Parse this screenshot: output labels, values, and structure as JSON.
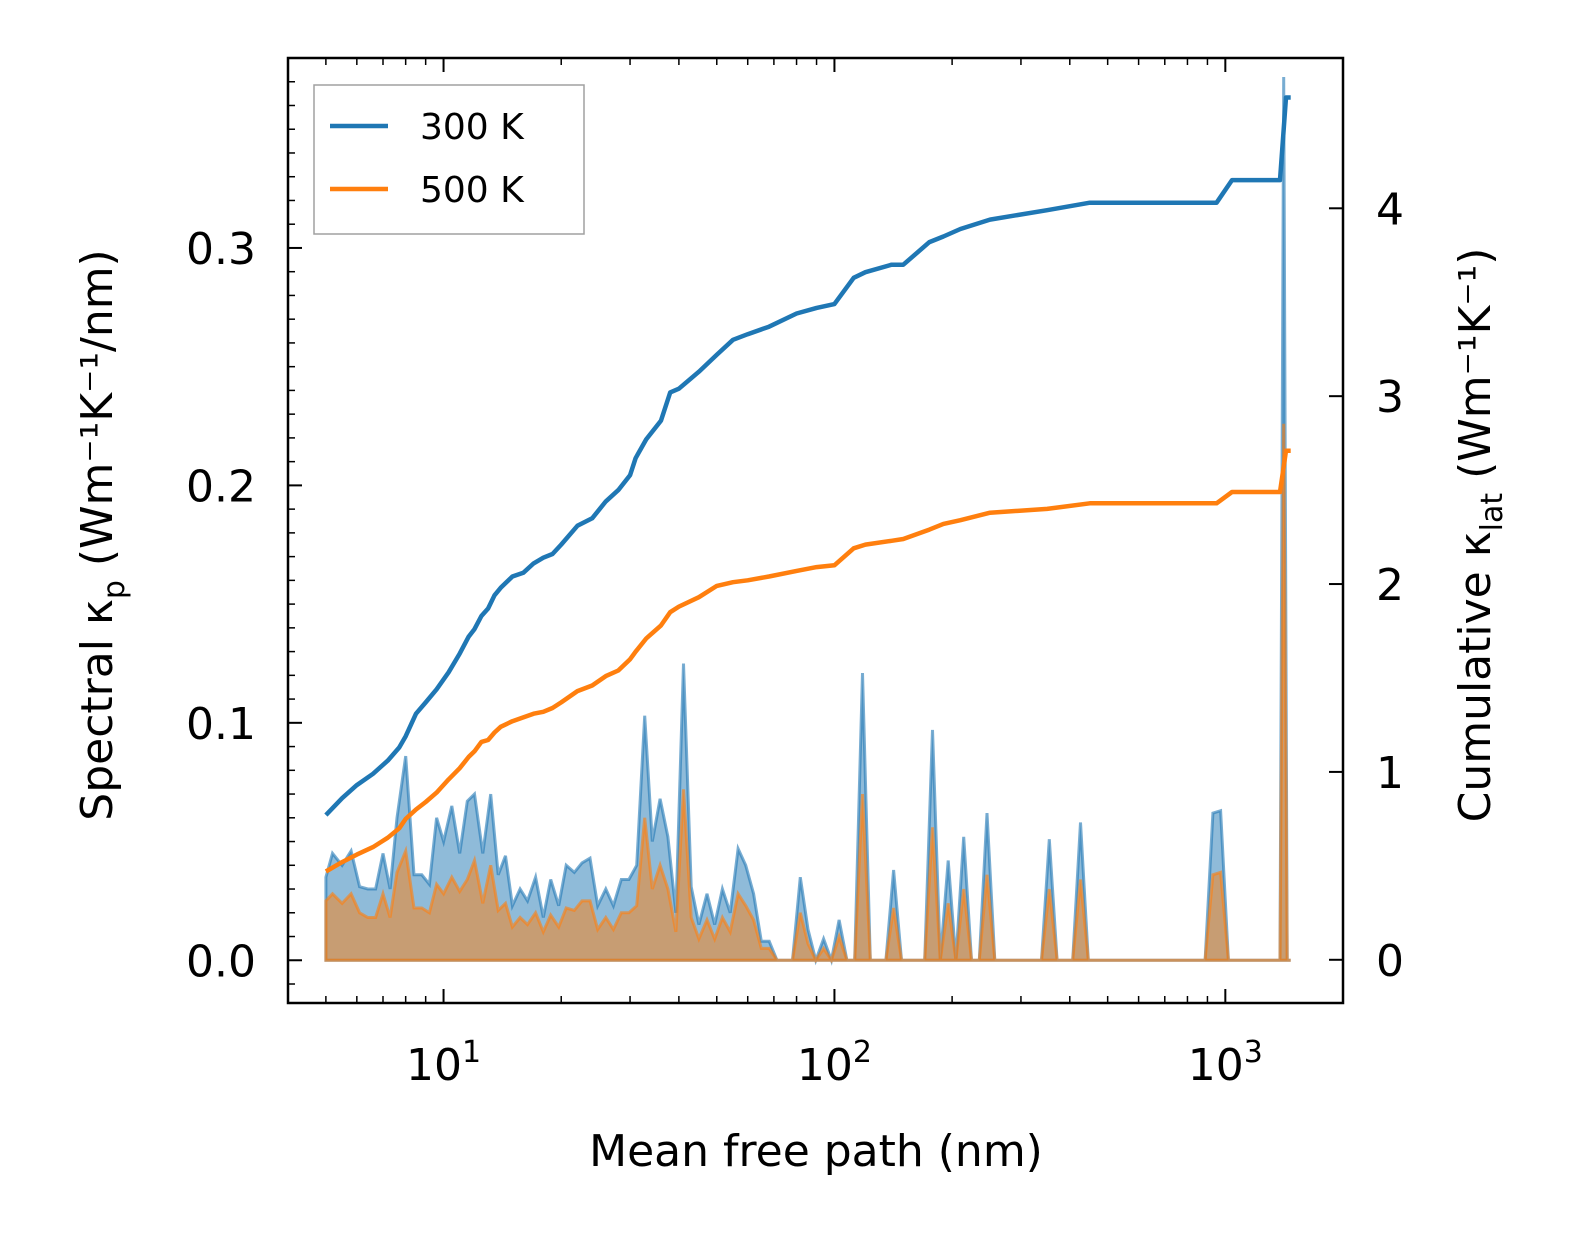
{
  "chart_data": {
    "type": "line",
    "title": "",
    "xlabel": "Mean free path (nm)",
    "ylabel": "Spectral κ",
    "ylabel_sub": "p",
    "ylabel_units": " (Wm⁻¹K⁻¹/nm)",
    "y2label": "Cumulative κ",
    "y2label_sub": "lat",
    "y2label_units": " (Wm⁻¹K⁻¹)",
    "xscale": "log",
    "xlim": [
      4.0,
      2000
    ],
    "ylim": [
      -0.018,
      0.38
    ],
    "y2lim": [
      -0.23,
      4.8
    ],
    "x_ticks": [
      10,
      100,
      1000
    ],
    "x_tick_labels": [
      {
        "base": "10",
        "exp": "1"
      },
      {
        "base": "10",
        "exp": "2"
      },
      {
        "base": "10",
        "exp": "3"
      }
    ],
    "y_ticks": [
      0.0,
      0.1,
      0.2,
      0.3
    ],
    "y_tick_labels": [
      "0.0",
      "0.1",
      "0.2",
      "0.3"
    ],
    "y2_ticks": [
      0,
      1,
      2,
      3,
      4
    ],
    "y2_tick_labels": [
      "0",
      "1",
      "2",
      "3",
      "4"
    ],
    "grid": false,
    "legend_position": "top-left",
    "series": [
      {
        "name": "300 K",
        "color": "#1f77b4",
        "axis": "right",
        "kind": "cumulative",
        "x": [
          5.0,
          5.5,
          6.0,
          6.6,
          7.2,
          7.7,
          8.0,
          8.5,
          9.0,
          9.6,
          10.3,
          11.0,
          11.6,
          12.0,
          12.5,
          13.0,
          13.5,
          14.0,
          15.0,
          16.0,
          17.0,
          18.0,
          19.0,
          20.0,
          22.0,
          24.0,
          26.0,
          28.0,
          30.0,
          31.0,
          33.0,
          36.0,
          38.0,
          40.0,
          45.0,
          50.0,
          55.0,
          60.0,
          68.0,
          80.0,
          90.0,
          100.0,
          112.0,
          120.0,
          140.0,
          150.0,
          175.0,
          190.0,
          210.0,
          250.0,
          350.0,
          450.0,
          950.0,
          1040.0,
          1380.0,
          1430.0,
          1470.0
        ],
        "values": [
          0.77,
          0.86,
          0.93,
          0.99,
          1.06,
          1.13,
          1.19,
          1.31,
          1.37,
          1.44,
          1.53,
          1.63,
          1.72,
          1.76,
          1.83,
          1.87,
          1.94,
          1.98,
          2.04,
          2.06,
          2.11,
          2.14,
          2.16,
          2.21,
          2.31,
          2.35,
          2.44,
          2.5,
          2.58,
          2.67,
          2.77,
          2.87,
          3.02,
          3.04,
          3.13,
          3.22,
          3.3,
          3.33,
          3.37,
          3.44,
          3.47,
          3.49,
          3.63,
          3.66,
          3.7,
          3.7,
          3.82,
          3.85,
          3.89,
          3.94,
          3.99,
          4.03,
          4.03,
          4.15,
          4.15,
          4.59,
          4.59
        ]
      },
      {
        "name": "500 K",
        "color": "#ff7f0e",
        "axis": "right",
        "kind": "cumulative",
        "x": [
          5.0,
          5.5,
          6.0,
          6.6,
          7.2,
          7.7,
          8.0,
          8.5,
          9.0,
          9.6,
          10.3,
          11.0,
          11.6,
          12.0,
          12.5,
          13.0,
          13.5,
          14.0,
          15.0,
          16.0,
          17.0,
          18.0,
          19.0,
          20.0,
          22.0,
          24.0,
          26.0,
          28.0,
          30.0,
          31.0,
          33.0,
          36.0,
          38.0,
          40.0,
          45.0,
          50.0,
          55.0,
          60.0,
          68.0,
          80.0,
          90.0,
          100.0,
          112.0,
          120.0,
          140.0,
          150.0,
          175.0,
          190.0,
          210.0,
          250.0,
          350.0,
          450.0,
          950.0,
          1040.0,
          1380.0,
          1430.0,
          1470.0
        ],
        "values": [
          0.47,
          0.52,
          0.56,
          0.6,
          0.65,
          0.7,
          0.75,
          0.8,
          0.84,
          0.89,
          0.96,
          1.02,
          1.08,
          1.11,
          1.16,
          1.17,
          1.21,
          1.24,
          1.27,
          1.29,
          1.31,
          1.32,
          1.34,
          1.37,
          1.43,
          1.46,
          1.51,
          1.54,
          1.6,
          1.64,
          1.71,
          1.78,
          1.85,
          1.88,
          1.93,
          1.99,
          2.01,
          2.02,
          2.04,
          2.07,
          2.09,
          2.1,
          2.19,
          2.21,
          2.23,
          2.24,
          2.29,
          2.32,
          2.34,
          2.38,
          2.4,
          2.43,
          2.43,
          2.49,
          2.49,
          2.71,
          2.71
        ]
      },
      {
        "name": "300 K spectral",
        "color": "#1f77b4",
        "axis": "left",
        "kind": "spectral",
        "x": [
          5.0,
          5.2,
          5.5,
          5.8,
          6.1,
          6.4,
          6.7,
          7.0,
          7.3,
          7.6,
          8.0,
          8.4,
          8.8,
          9.2,
          9.6,
          10.0,
          10.5,
          11.0,
          11.5,
          12.0,
          12.6,
          13.2,
          13.8,
          14.4,
          15.0,
          15.7,
          16.4,
          17.2,
          18.0,
          18.8,
          19.7,
          20.6,
          21.6,
          22.6,
          23.7,
          24.8,
          26.0,
          27.2,
          28.5,
          29.8,
          31.2,
          32.7,
          34.2,
          35.8,
          37.5,
          39.3,
          41.1,
          43.0,
          45.0,
          47.2,
          49.4,
          51.7,
          54.1,
          56.7,
          59.3,
          62.1,
          65.0,
          68.1,
          71.3,
          74.6,
          78.1,
          81.8,
          85.6,
          89.6,
          93.8,
          98.2,
          102.8,
          107.6,
          112.7,
          118.0,
          123.5,
          129.3,
          135.4,
          141.7,
          148.4,
          155.3,
          162.6,
          170.2,
          178.2,
          186.6,
          195.4,
          204.5,
          214.1,
          224.2,
          234.7,
          245.7,
          257.2,
          269.3,
          281.9,
          295.2,
          309.0,
          323.5,
          338.7,
          354.6,
          371.2,
          388.7,
          406.9,
          426.0,
          446.0,
          466.9,
          488.8,
          511.8,
          535.8,
          561.0,
          587.3,
          614.9,
          643.7,
          673.9,
          705.6,
          738.7,
          773.4,
          809.7,
          847.7,
          887.5,
          929.2,
          972.8,
          1018.5,
          1066.3,
          1116.4,
          1168.8,
          1223.7,
          1281.1,
          1341.3,
          1380.0,
          1410.0,
          1440.0,
          1470.0
        ],
        "values": [
          0.035,
          0.045,
          0.04,
          0.046,
          0.031,
          0.03,
          0.03,
          0.045,
          0.03,
          0.06,
          0.086,
          0.036,
          0.036,
          0.032,
          0.06,
          0.05,
          0.065,
          0.045,
          0.067,
          0.07,
          0.045,
          0.07,
          0.036,
          0.044,
          0.023,
          0.03,
          0.025,
          0.035,
          0.018,
          0.034,
          0.023,
          0.04,
          0.037,
          0.041,
          0.043,
          0.023,
          0.03,
          0.023,
          0.034,
          0.034,
          0.04,
          0.103,
          0.05,
          0.068,
          0.052,
          0.02,
          0.125,
          0.031,
          0.015,
          0.028,
          0.015,
          0.03,
          0.02,
          0.047,
          0.04,
          0.028,
          0.008,
          0.008,
          0.0,
          0.0,
          0.0,
          0.035,
          0.013,
          0.0,
          0.009,
          0.0,
          0.017,
          0.0,
          0.0,
          0.121,
          0.0,
          0.0,
          0.0,
          0.038,
          0.0,
          0.0,
          0.0,
          0.0,
          0.097,
          0.0,
          0.042,
          0.0,
          0.052,
          0.0,
          0.0,
          0.062,
          0.0,
          0.0,
          0.0,
          0.0,
          0.0,
          0.0,
          0.0,
          0.051,
          0.0,
          0.0,
          0.0,
          0.058,
          0.0,
          0.0,
          0.0,
          0.0,
          0.0,
          0.0,
          0.0,
          0.0,
          0.0,
          0.0,
          0.0,
          0.0,
          0.0,
          0.0,
          0.0,
          0.0,
          0.062,
          0.063,
          0.0,
          0.0,
          0.0,
          0.0,
          0.0,
          0.0,
          0.0,
          0.0,
          0.372,
          0.0,
          0.0
        ]
      },
      {
        "name": "500 K spectral",
        "color": "#ff7f0e",
        "axis": "left",
        "kind": "spectral",
        "x": [
          5.0,
          5.2,
          5.5,
          5.8,
          6.1,
          6.4,
          6.7,
          7.0,
          7.3,
          7.6,
          8.0,
          8.4,
          8.8,
          9.2,
          9.6,
          10.0,
          10.5,
          11.0,
          11.5,
          12.0,
          12.6,
          13.2,
          13.8,
          14.4,
          15.0,
          15.7,
          16.4,
          17.2,
          18.0,
          18.8,
          19.7,
          20.6,
          21.6,
          22.6,
          23.7,
          24.8,
          26.0,
          27.2,
          28.5,
          29.8,
          31.2,
          32.7,
          34.2,
          35.8,
          37.5,
          39.3,
          41.1,
          43.0,
          45.0,
          47.2,
          49.4,
          51.7,
          54.1,
          56.7,
          59.3,
          62.1,
          65.0,
          68.1,
          71.3,
          74.6,
          78.1,
          81.8,
          85.6,
          89.6,
          93.8,
          98.2,
          102.8,
          107.6,
          112.7,
          118.0,
          123.5,
          129.3,
          135.4,
          141.7,
          148.4,
          155.3,
          162.6,
          170.2,
          178.2,
          186.6,
          195.4,
          204.5,
          214.1,
          224.2,
          234.7,
          245.7,
          257.2,
          269.3,
          281.9,
          295.2,
          309.0,
          323.5,
          338.7,
          354.6,
          371.2,
          388.7,
          406.9,
          426.0,
          446.0,
          466.9,
          488.8,
          511.8,
          535.8,
          561.0,
          587.3,
          614.9,
          643.7,
          673.9,
          705.6,
          738.7,
          773.4,
          809.7,
          847.7,
          887.5,
          929.2,
          972.8,
          1018.5,
          1066.3,
          1116.4,
          1168.8,
          1223.7,
          1281.1,
          1341.3,
          1380.0,
          1410.0,
          1440.0,
          1470.0
        ],
        "values": [
          0.025,
          0.028,
          0.024,
          0.028,
          0.02,
          0.018,
          0.018,
          0.028,
          0.018,
          0.037,
          0.046,
          0.022,
          0.022,
          0.02,
          0.032,
          0.028,
          0.035,
          0.029,
          0.034,
          0.042,
          0.024,
          0.04,
          0.021,
          0.024,
          0.014,
          0.018,
          0.015,
          0.02,
          0.012,
          0.019,
          0.014,
          0.022,
          0.021,
          0.025,
          0.025,
          0.013,
          0.018,
          0.013,
          0.02,
          0.02,
          0.023,
          0.06,
          0.03,
          0.04,
          0.03,
          0.012,
          0.072,
          0.018,
          0.009,
          0.017,
          0.009,
          0.018,
          0.012,
          0.028,
          0.023,
          0.017,
          0.005,
          0.005,
          0.0,
          0.0,
          0.0,
          0.02,
          0.007,
          0.0,
          0.005,
          0.0,
          0.01,
          0.0,
          0.0,
          0.07,
          0.0,
          0.0,
          0.0,
          0.022,
          0.0,
          0.0,
          0.0,
          0.0,
          0.056,
          0.0,
          0.024,
          0.0,
          0.03,
          0.0,
          0.0,
          0.036,
          0.0,
          0.0,
          0.0,
          0.0,
          0.0,
          0.0,
          0.0,
          0.03,
          0.0,
          0.0,
          0.0,
          0.034,
          0.0,
          0.0,
          0.0,
          0.0,
          0.0,
          0.0,
          0.0,
          0.0,
          0.0,
          0.0,
          0.0,
          0.0,
          0.0,
          0.0,
          0.0,
          0.0,
          0.036,
          0.037,
          0.0,
          0.0,
          0.0,
          0.0,
          0.0,
          0.0,
          0.0,
          0.0,
          0.226,
          0.0,
          0.0
        ]
      }
    ],
    "legend": [
      {
        "label": "300 K",
        "color": "#1f77b4"
      },
      {
        "label": "500 K",
        "color": "#ff7f0e"
      }
    ]
  }
}
